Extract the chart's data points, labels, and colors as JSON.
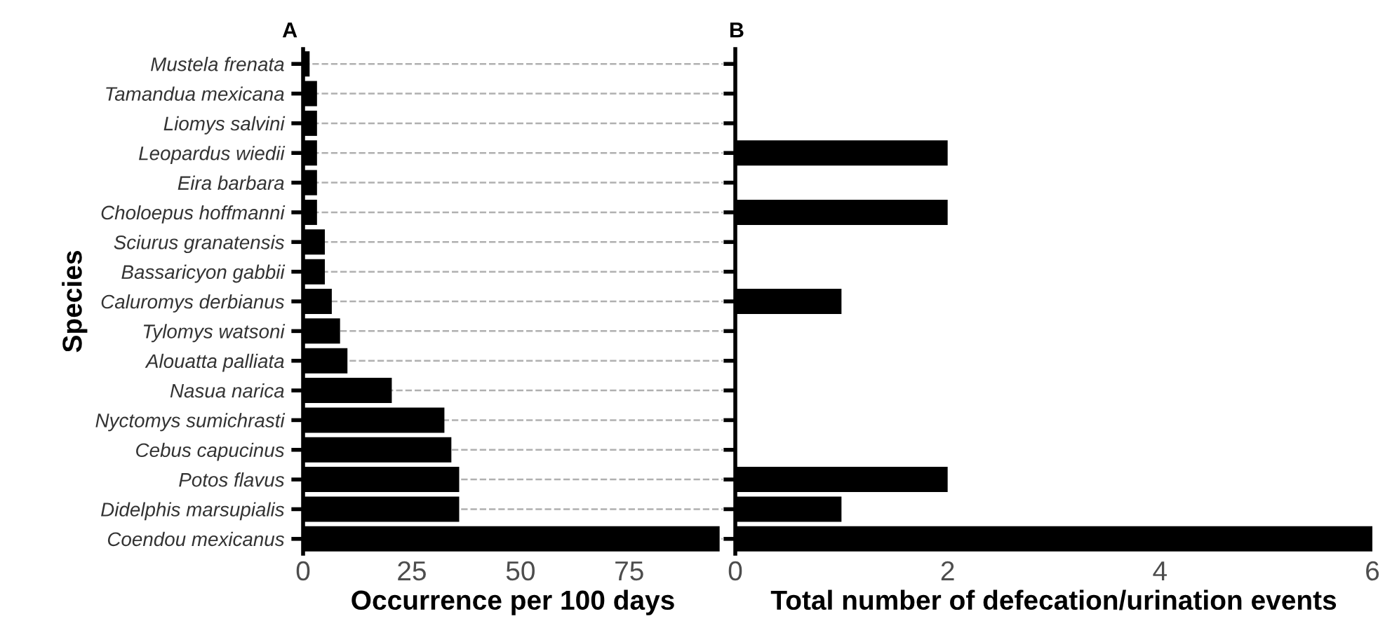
{
  "chart_data": [
    {
      "type": "bar",
      "orientation": "horizontal",
      "title": "A",
      "ylabel": "Species",
      "xlabel": "Occurrence per 100 days",
      "categories": [
        "Mustela frenata",
        "Tamandua mexicana",
        "Liomys salvini",
        "Leopardus wiedii",
        "Eira barbara",
        "Choloepus hoffmanni",
        "Sciurus granatensis",
        "Bassaricyon gabbii",
        "Caluromys derbianus",
        "Tylomys watsoni",
        "Alouatta palliata",
        "Nasua narica",
        "Nyctomys sumichrasti",
        "Cebus capucinus",
        "Potos flavus",
        "Didelphis marsupialis",
        "Coendou mexicanus"
      ],
      "series": [
        {
          "color": "#000000",
          "values": [
            1.5,
            3.2,
            3.2,
            3.2,
            3.2,
            3.2,
            5.0,
            5.0,
            6.6,
            8.5,
            10.2,
            20.4,
            32.5,
            34.1,
            35.9,
            35.9,
            95.8
          ]
        }
      ],
      "xlim": [
        0,
        96.5
      ],
      "xticks": [
        0,
        25,
        50,
        75
      ],
      "grid": "y",
      "legend": false
    },
    {
      "type": "bar",
      "orientation": "horizontal",
      "title": "B",
      "xlabel": "Total number of defecation/urination events",
      "categories": [
        null,
        null,
        null,
        null,
        null,
        null,
        null,
        null,
        null,
        null,
        null,
        null,
        null,
        null,
        null,
        null,
        null
      ],
      "series": [
        {
          "color": "#000000",
          "values": [
            0,
            0,
            0,
            2,
            0,
            2,
            0,
            0,
            1,
            0,
            0,
            0,
            0,
            0,
            2,
            1,
            6
          ]
        }
      ],
      "xlim": [
        0,
        6
      ],
      "xticks": [
        0,
        2,
        4,
        6
      ],
      "tick_labels": "x",
      "grid": false,
      "legend": false
    }
  ]
}
